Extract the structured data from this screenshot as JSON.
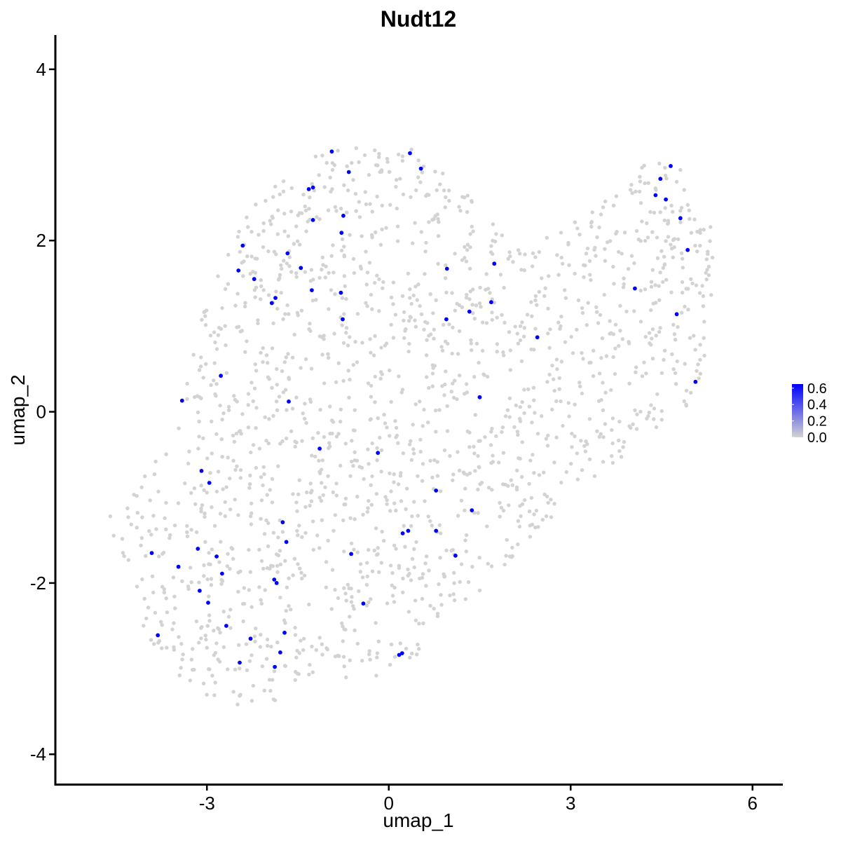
{
  "chart_data": {
    "type": "scatter",
    "title": "Nudt12",
    "xlabel": "umap_1",
    "ylabel": "umap_2",
    "xlim": [
      -5.5,
      6.5
    ],
    "ylim": [
      -4.35,
      4.4
    ],
    "x_ticks": [
      -3,
      0,
      3,
      6
    ],
    "y_ticks": [
      -4,
      -2,
      0,
      2,
      4
    ],
    "x_tick_labels": [
      "-3",
      "0",
      "3",
      "6"
    ],
    "y_tick_labels": [
      "-4",
      "-2",
      "0",
      "2",
      "4"
    ],
    "grid": false,
    "legend": {
      "placement": "right",
      "type": "colorbar",
      "labels": [
        "0.6",
        "0.4",
        "0.2",
        "0.0"
      ],
      "values": [
        0.6,
        0.4,
        0.2,
        0.0
      ],
      "range": [
        0,
        0.65
      ],
      "low_color": "#d3d3d3",
      "high_color": "#0000ff"
    },
    "colors": {
      "background_cells": "#d3d3d3",
      "expressing_cells": "#0000ff"
    },
    "background_point_count": 1700,
    "expressing_points": [
      {
        "x": -0.94,
        "y": 3.04,
        "v": 0.65
      },
      {
        "x": 0.35,
        "y": 3.02,
        "v": 0.65
      },
      {
        "x": -0.66,
        "y": 2.8,
        "v": 0.65
      },
      {
        "x": 0.53,
        "y": 2.84,
        "v": 0.65
      },
      {
        "x": -1.32,
        "y": 2.6,
        "v": 0.65
      },
      {
        "x": -1.25,
        "y": 2.62,
        "v": 0.65
      },
      {
        "x": -0.75,
        "y": 2.29,
        "v": 0.65
      },
      {
        "x": -1.25,
        "y": 2.24,
        "v": 0.65
      },
      {
        "x": -0.78,
        "y": 2.09,
        "v": 0.65
      },
      {
        "x": -2.41,
        "y": 1.94,
        "v": 0.65
      },
      {
        "x": -1.67,
        "y": 1.85,
        "v": 0.65
      },
      {
        "x": -2.48,
        "y": 1.65,
        "v": 0.65
      },
      {
        "x": -1.45,
        "y": 1.68,
        "v": 0.65
      },
      {
        "x": -2.22,
        "y": 1.55,
        "v": 0.65
      },
      {
        "x": -1.27,
        "y": 1.42,
        "v": 0.65
      },
      {
        "x": -0.79,
        "y": 1.39,
        "v": 0.65
      },
      {
        "x": -1.87,
        "y": 1.33,
        "v": 0.65
      },
      {
        "x": -1.93,
        "y": 1.27,
        "v": 0.65
      },
      {
        "x": -0.76,
        "y": 1.08,
        "v": 0.65
      },
      {
        "x": 0.96,
        "y": 1.67,
        "v": 0.65
      },
      {
        "x": 1.74,
        "y": 1.73,
        "v": 0.65
      },
      {
        "x": 1.33,
        "y": 1.17,
        "v": 0.65
      },
      {
        "x": 1.69,
        "y": 1.28,
        "v": 0.65
      },
      {
        "x": 0.95,
        "y": 1.08,
        "v": 0.65
      },
      {
        "x": 2.45,
        "y": 0.87,
        "v": 0.65
      },
      {
        "x": 4.65,
        "y": 2.87,
        "v": 0.65
      },
      {
        "x": 4.48,
        "y": 2.72,
        "v": 0.65
      },
      {
        "x": 4.4,
        "y": 2.53,
        "v": 0.65
      },
      {
        "x": 4.57,
        "y": 2.48,
        "v": 0.65
      },
      {
        "x": 4.81,
        "y": 2.26,
        "v": 0.65
      },
      {
        "x": 4.93,
        "y": 1.89,
        "v": 0.65
      },
      {
        "x": 4.06,
        "y": 1.44,
        "v": 0.65
      },
      {
        "x": 4.75,
        "y": 1.14,
        "v": 0.65
      },
      {
        "x": 5.06,
        "y": 0.35,
        "v": 0.65
      },
      {
        "x": -2.77,
        "y": 0.42,
        "v": 0.65
      },
      {
        "x": -3.41,
        "y": 0.13,
        "v": 0.65
      },
      {
        "x": -1.65,
        "y": 0.12,
        "v": 0.65
      },
      {
        "x": 1.5,
        "y": 0.17,
        "v": 0.65
      },
      {
        "x": -1.14,
        "y": -0.43,
        "v": 0.65
      },
      {
        "x": -0.18,
        "y": -0.48,
        "v": 0.65
      },
      {
        "x": -3.09,
        "y": -0.69,
        "v": 0.65
      },
      {
        "x": -2.96,
        "y": -0.83,
        "v": 0.65
      },
      {
        "x": 0.78,
        "y": -0.92,
        "v": 0.65
      },
      {
        "x": 1.37,
        "y": -1.15,
        "v": 0.65
      },
      {
        "x": -1.75,
        "y": -1.29,
        "v": 0.65
      },
      {
        "x": 0.78,
        "y": -1.39,
        "v": 0.65
      },
      {
        "x": 0.32,
        "y": -1.39,
        "v": 0.65
      },
      {
        "x": 0.23,
        "y": -1.42,
        "v": 0.65
      },
      {
        "x": -1.69,
        "y": -1.52,
        "v": 0.65
      },
      {
        "x": -3.15,
        "y": -1.6,
        "v": 0.65
      },
      {
        "x": -3.91,
        "y": -1.65,
        "v": 0.65
      },
      {
        "x": -0.62,
        "y": -1.66,
        "v": 0.65
      },
      {
        "x": 1.1,
        "y": -1.68,
        "v": 0.65
      },
      {
        "x": -2.84,
        "y": -1.69,
        "v": 0.65
      },
      {
        "x": -3.47,
        "y": -1.81,
        "v": 0.65
      },
      {
        "x": -2.75,
        "y": -1.89,
        "v": 0.65
      },
      {
        "x": -1.89,
        "y": -1.96,
        "v": 0.65
      },
      {
        "x": -1.85,
        "y": -2.0,
        "v": 0.65
      },
      {
        "x": -3.12,
        "y": -2.09,
        "v": 0.65
      },
      {
        "x": -2.98,
        "y": -2.23,
        "v": 0.65
      },
      {
        "x": -0.42,
        "y": -2.24,
        "v": 0.65
      },
      {
        "x": -2.68,
        "y": -2.5,
        "v": 0.65
      },
      {
        "x": -1.72,
        "y": -2.58,
        "v": 0.65
      },
      {
        "x": -3.81,
        "y": -2.61,
        "v": 0.65
      },
      {
        "x": -2.28,
        "y": -2.65,
        "v": 0.65
      },
      {
        "x": 0.22,
        "y": -2.82,
        "v": 0.65
      },
      {
        "x": 0.17,
        "y": -2.84,
        "v": 0.65
      },
      {
        "x": -1.79,
        "y": -2.81,
        "v": 0.65
      },
      {
        "x": -2.46,
        "y": -2.93,
        "v": 0.65
      },
      {
        "x": -1.88,
        "y": -2.98,
        "v": 0.65
      }
    ]
  }
}
